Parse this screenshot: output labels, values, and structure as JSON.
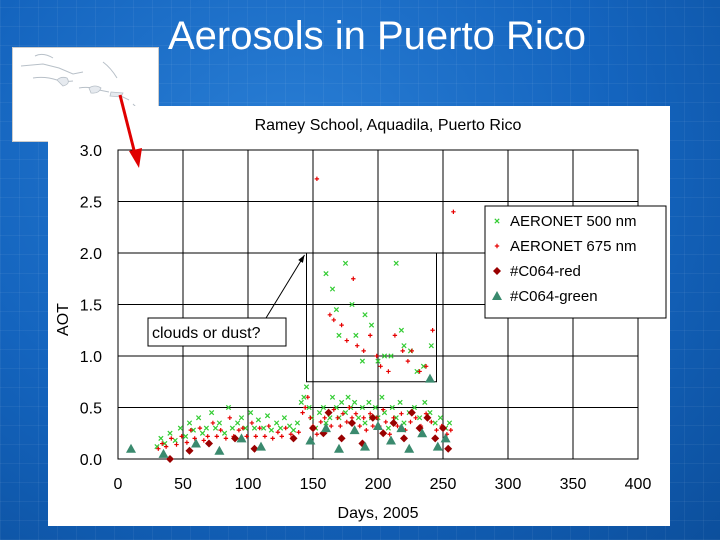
{
  "slide": {
    "title": "Aerosols in Puerto Rico"
  },
  "colors": {
    "background": "#1464be",
    "green_series": "#33cc33",
    "red_series": "#e60000",
    "dark_red_series": "#990000",
    "teal_series": "#3a8a6e",
    "annotation_arrow": "#e00000"
  },
  "map_inset": {
    "icon": "caribbean-map-icon"
  },
  "chart_data": {
    "type": "scatter",
    "title": "Ramey School, Aquadila, Puerto Rico",
    "xlabel": "Days, 2005",
    "ylabel": "AOT",
    "xlim": [
      0,
      400
    ],
    "ylim": [
      0.0,
      3.0
    ],
    "xticks": [
      "0",
      "50",
      "100",
      "150",
      "200",
      "250",
      "300",
      "350",
      "400"
    ],
    "yticks": [
      "0.0",
      "0.5",
      "1.0",
      "1.5",
      "2.0",
      "2.5",
      "3.0"
    ],
    "grid": true,
    "legend_position": "right",
    "legend": [
      "AERONET 500 nm",
      "AERONET 675 nm",
      "#C064-red",
      "#C064-green"
    ],
    "annotation": {
      "text": "clouds or dust?",
      "box_x": [
        145,
        245
      ],
      "box_y": [
        0.75,
        2.0
      ]
    },
    "series": [
      {
        "name": "AERONET 500 nm",
        "marker": "x",
        "color": "#33cc33",
        "points": [
          [
            30,
            0.12
          ],
          [
            33,
            0.2
          ],
          [
            36,
            0.15
          ],
          [
            40,
            0.25
          ],
          [
            44,
            0.18
          ],
          [
            48,
            0.3
          ],
          [
            52,
            0.22
          ],
          [
            55,
            0.35
          ],
          [
            58,
            0.28
          ],
          [
            62,
            0.4
          ],
          [
            65,
            0.25
          ],
          [
            68,
            0.3
          ],
          [
            72,
            0.45
          ],
          [
            75,
            0.3
          ],
          [
            78,
            0.35
          ],
          [
            82,
            0.25
          ],
          [
            85,
            0.5
          ],
          [
            88,
            0.3
          ],
          [
            92,
            0.35
          ],
          [
            95,
            0.4
          ],
          [
            98,
            0.3
          ],
          [
            102,
            0.45
          ],
          [
            105,
            0.3
          ],
          [
            108,
            0.38
          ],
          [
            112,
            0.3
          ],
          [
            115,
            0.42
          ],
          [
            118,
            0.28
          ],
          [
            122,
            0.35
          ],
          [
            125,
            0.3
          ],
          [
            128,
            0.4
          ],
          [
            132,
            0.32
          ],
          [
            135,
            0.28
          ],
          [
            138,
            0.35
          ],
          [
            141,
            0.55
          ],
          [
            143,
            0.6
          ],
          [
            145,
            0.7
          ],
          [
            147,
            0.5
          ],
          [
            149,
            0.4
          ],
          [
            152,
            0.3
          ],
          [
            155,
            0.45
          ],
          [
            158,
            0.5
          ],
          [
            160,
            0.35
          ],
          [
            163,
            0.4
          ],
          [
            165,
            0.6
          ],
          [
            168,
            0.5
          ],
          [
            170,
            0.4
          ],
          [
            172,
            0.55
          ],
          [
            175,
            0.45
          ],
          [
            177,
            0.6
          ],
          [
            179,
            0.5
          ],
          [
            182,
            0.55
          ],
          [
            185,
            0.4
          ],
          [
            188,
            0.5
          ],
          [
            190,
            0.35
          ],
          [
            193,
            0.55
          ],
          [
            195,
            0.4
          ],
          [
            198,
            0.5
          ],
          [
            200,
            0.4
          ],
          [
            203,
            0.6
          ],
          [
            205,
            0.45
          ],
          [
            208,
            0.3
          ],
          [
            211,
            0.5
          ],
          [
            214,
            0.4
          ],
          [
            217,
            0.55
          ],
          [
            220,
            0.35
          ],
          [
            224,
            0.45
          ],
          [
            228,
            0.5
          ],
          [
            232,
            0.4
          ],
          [
            236,
            0.55
          ],
          [
            240,
            0.45
          ],
          [
            244,
            0.35
          ],
          [
            248,
            0.4
          ],
          [
            252,
            0.3
          ],
          [
            255,
            0.35
          ],
          [
            160,
            1.8
          ],
          [
            165,
            1.65
          ],
          [
            168,
            1.45
          ],
          [
            170,
            1.2
          ],
          [
            175,
            1.9
          ],
          [
            180,
            1.5
          ],
          [
            183,
            1.2
          ],
          [
            188,
            0.95
          ],
          [
            190,
            1.4
          ],
          [
            195,
            1.3
          ],
          [
            200,
            0.95
          ],
          [
            205,
            1.0
          ],
          [
            210,
            1.0
          ],
          [
            214,
            1.9
          ],
          [
            218,
            1.25
          ],
          [
            220,
            1.1
          ],
          [
            225,
            1.05
          ],
          [
            230,
            0.85
          ],
          [
            235,
            0.9
          ],
          [
            241,
            1.1
          ]
        ]
      },
      {
        "name": "AERONET 675 nm",
        "marker": "+",
        "color": "#e60000",
        "points": [
          [
            31,
            0.1
          ],
          [
            34,
            0.15
          ],
          [
            37,
            0.12
          ],
          [
            41,
            0.2
          ],
          [
            45,
            0.14
          ],
          [
            49,
            0.22
          ],
          [
            53,
            0.16
          ],
          [
            56,
            0.28
          ],
          [
            59,
            0.2
          ],
          [
            63,
            0.3
          ],
          [
            66,
            0.18
          ],
          [
            69,
            0.22
          ],
          [
            73,
            0.35
          ],
          [
            76,
            0.22
          ],
          [
            79,
            0.28
          ],
          [
            83,
            0.2
          ],
          [
            86,
            0.4
          ],
          [
            89,
            0.22
          ],
          [
            93,
            0.28
          ],
          [
            96,
            0.3
          ],
          [
            99,
            0.22
          ],
          [
            103,
            0.35
          ],
          [
            106,
            0.22
          ],
          [
            109,
            0.3
          ],
          [
            113,
            0.22
          ],
          [
            116,
            0.32
          ],
          [
            119,
            0.2
          ],
          [
            123,
            0.26
          ],
          [
            126,
            0.22
          ],
          [
            129,
            0.3
          ],
          [
            133,
            0.24
          ],
          [
            136,
            0.2
          ],
          [
            139,
            0.26
          ],
          [
            142,
            0.45
          ],
          [
            144,
            0.5
          ],
          [
            146,
            0.6
          ],
          [
            148,
            0.4
          ],
          [
            150,
            0.32
          ],
          [
            153,
            0.24
          ],
          [
            156,
            0.36
          ],
          [
            159,
            0.4
          ],
          [
            161,
            0.28
          ],
          [
            164,
            0.32
          ],
          [
            166,
            0.48
          ],
          [
            169,
            0.4
          ],
          [
            171,
            0.32
          ],
          [
            173,
            0.44
          ],
          [
            176,
            0.36
          ],
          [
            178,
            0.5
          ],
          [
            180,
            0.4
          ],
          [
            183,
            0.44
          ],
          [
            186,
            0.32
          ],
          [
            189,
            0.4
          ],
          [
            191,
            0.28
          ],
          [
            194,
            0.44
          ],
          [
            196,
            0.32
          ],
          [
            199,
            0.4
          ],
          [
            201,
            0.32
          ],
          [
            204,
            0.48
          ],
          [
            206,
            0.36
          ],
          [
            209,
            0.24
          ],
          [
            212,
            0.4
          ],
          [
            215,
            0.32
          ],
          [
            218,
            0.44
          ],
          [
            221,
            0.28
          ],
          [
            225,
            0.36
          ],
          [
            229,
            0.4
          ],
          [
            233,
            0.32
          ],
          [
            237,
            0.44
          ],
          [
            241,
            0.36
          ],
          [
            245,
            0.28
          ],
          [
            249,
            0.32
          ],
          [
            253,
            0.24
          ],
          [
            256,
            0.28
          ],
          [
            153,
            2.72
          ],
          [
            163,
            1.4
          ],
          [
            166,
            1.35
          ],
          [
            172,
            1.3
          ],
          [
            176,
            1.15
          ],
          [
            181,
            1.75
          ],
          [
            184,
            1.1
          ],
          [
            189,
            1.05
          ],
          [
            194,
            1.2
          ],
          [
            199,
            1.0
          ],
          [
            202,
            0.9
          ],
          [
            208,
            0.85
          ],
          [
            213,
            1.2
          ],
          [
            219,
            1.05
          ],
          [
            223,
            0.95
          ],
          [
            226,
            1.05
          ],
          [
            232,
            0.85
          ],
          [
            237,
            0.9
          ],
          [
            242,
            1.25
          ],
          [
            258,
            2.4
          ]
        ]
      },
      {
        "name": "#C064-red",
        "marker": "diamond",
        "color": "#990000",
        "points": [
          [
            40,
            0.0
          ],
          [
            55,
            0.08
          ],
          [
            70,
            0.15
          ],
          [
            90,
            0.2
          ],
          [
            105,
            0.1
          ],
          [
            135,
            0.2
          ],
          [
            150,
            0.3
          ],
          [
            158,
            0.25
          ],
          [
            162,
            0.45
          ],
          [
            172,
            0.2
          ],
          [
            180,
            0.35
          ],
          [
            188,
            0.15
          ],
          [
            196,
            0.4
          ],
          [
            204,
            0.25
          ],
          [
            212,
            0.35
          ],
          [
            220,
            0.2
          ],
          [
            226,
            0.45
          ],
          [
            232,
            0.3
          ],
          [
            238,
            0.4
          ],
          [
            244,
            0.2
          ],
          [
            250,
            0.3
          ],
          [
            254,
            0.1
          ]
        ]
      },
      {
        "name": "#C064-green",
        "marker": "triangle",
        "color": "#3a8a6e",
        "points": [
          [
            10,
            0.1
          ],
          [
            35,
            0.05
          ],
          [
            60,
            0.15
          ],
          [
            78,
            0.08
          ],
          [
            95,
            0.2
          ],
          [
            110,
            0.12
          ],
          [
            148,
            0.18
          ],
          [
            160,
            0.3
          ],
          [
            170,
            0.1
          ],
          [
            182,
            0.28
          ],
          [
            190,
            0.12
          ],
          [
            200,
            0.32
          ],
          [
            210,
            0.18
          ],
          [
            218,
            0.3
          ],
          [
            224,
            0.1
          ],
          [
            234,
            0.25
          ],
          [
            240,
            0.78
          ],
          [
            246,
            0.12
          ],
          [
            252,
            0.2
          ]
        ]
      }
    ]
  }
}
